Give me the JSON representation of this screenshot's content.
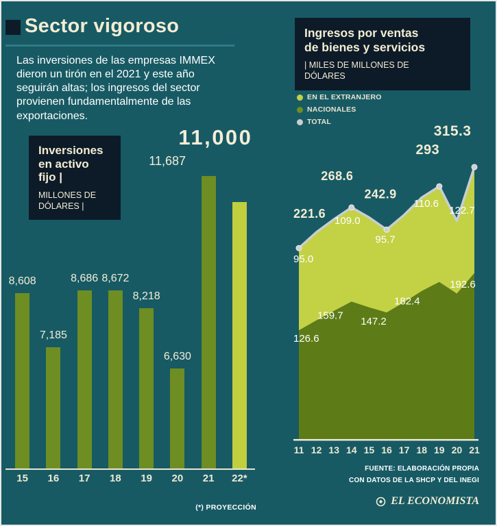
{
  "header": {
    "title": "Sector vigoroso",
    "intro": "Las inversiones de las empresas IMMEX dieron un tirón en el 2021 y este año seguirán altas; los ingresos del sector provienen fundamentalmente de las exportaciones."
  },
  "colors": {
    "background": "#175a64",
    "cream": "#f2ecd4",
    "dark_box": "#0d1b28",
    "rule_teal": "#2f7b87",
    "olive": "#6e8d22",
    "light_green": "#c3d145",
    "gray_line": "#c7ced2"
  },
  "chart_data": [
    {
      "type": "bar",
      "title": "Inversiones en activo fijo |",
      "title_lines": [
        "Inversiones",
        "en activo",
        "fijo |"
      ],
      "subtitle": "MILLONES DE DÓLARES |",
      "subtitle_lines": [
        "MILLONES DE",
        "DÓLARES |"
      ],
      "categories": [
        "15",
        "16",
        "17",
        "18",
        "19",
        "20",
        "21",
        "22*"
      ],
      "values": [
        8608,
        7185,
        8686,
        8672,
        8218,
        6630,
        11687,
        11000
      ],
      "value_labels": [
        "8,608",
        "7,185",
        "8,686",
        "8,672",
        "8,218",
        "6,630",
        "11,687",
        "11,000"
      ],
      "projection_index": 7,
      "note": "(*) PROYECCIÓN",
      "ylim": [
        4000,
        11687
      ],
      "bar_color": "#6e8d22",
      "projection_color": "#c0cf3e"
    },
    {
      "type": "area",
      "title": "Ingresos por ventas de bienes y servicios",
      "title_lines": [
        "Ingresos por ventas",
        "de bienes y servicios"
      ],
      "subtitle": "| MILES DE MILLONES DE DÓLARES",
      "subtitle_lines": [
        "| MILES DE MILLONES DE",
        "DÓLARES"
      ],
      "x": [
        "11",
        "12",
        "13",
        "14",
        "15",
        "16",
        "17",
        "18",
        "19",
        "20",
        "21"
      ],
      "series": [
        {
          "name": "NACIONALES",
          "color": "#5d7c17",
          "values": [
            126.6,
            138,
            149,
            159.7,
            153,
            147.2,
            159,
            172,
            182.4,
            169,
            192.6
          ]
        },
        {
          "name": "EN EL EXTRANJERO",
          "color": "#c3d145",
          "values": [
            95.0,
            102,
            106,
            109.0,
            104,
            95.7,
            101,
            108,
            110.6,
            84,
            122.7
          ]
        },
        {
          "name": "TOTAL",
          "color": "#c7ced2",
          "values": [
            221.6,
            240,
            255,
            268.6,
            257,
            242.9,
            260,
            280,
            293,
            253,
            315.3
          ]
        }
      ],
      "labeled_indices": [
        0,
        3,
        5,
        8,
        10
      ],
      "labels": {
        "total": [
          "221.6",
          "268.6",
          "242.9",
          "293",
          "315.3"
        ],
        "extranjero": [
          "95.0",
          "109.0",
          "95.7",
          "110.6",
          "122.7"
        ],
        "nacionales": [
          "126.6",
          "159.7",
          "147.2",
          "182.4",
          "192.6"
        ]
      },
      "legend": [
        {
          "label": "EN EL EXTRANJERO",
          "color": "#c3d145"
        },
        {
          "label": "NACIONALES",
          "color": "#6e8d22"
        },
        {
          "label": "TOTAL",
          "color": "#c7ced2"
        }
      ],
      "ylim": [
        0,
        320
      ]
    }
  ],
  "footer": {
    "source": [
      "FUENTE: ELABORACIÓN PROPIA",
      "CON DATOS DE LA SHCP Y DEL INEGI"
    ],
    "brand": "EL ECONOMISTA"
  }
}
